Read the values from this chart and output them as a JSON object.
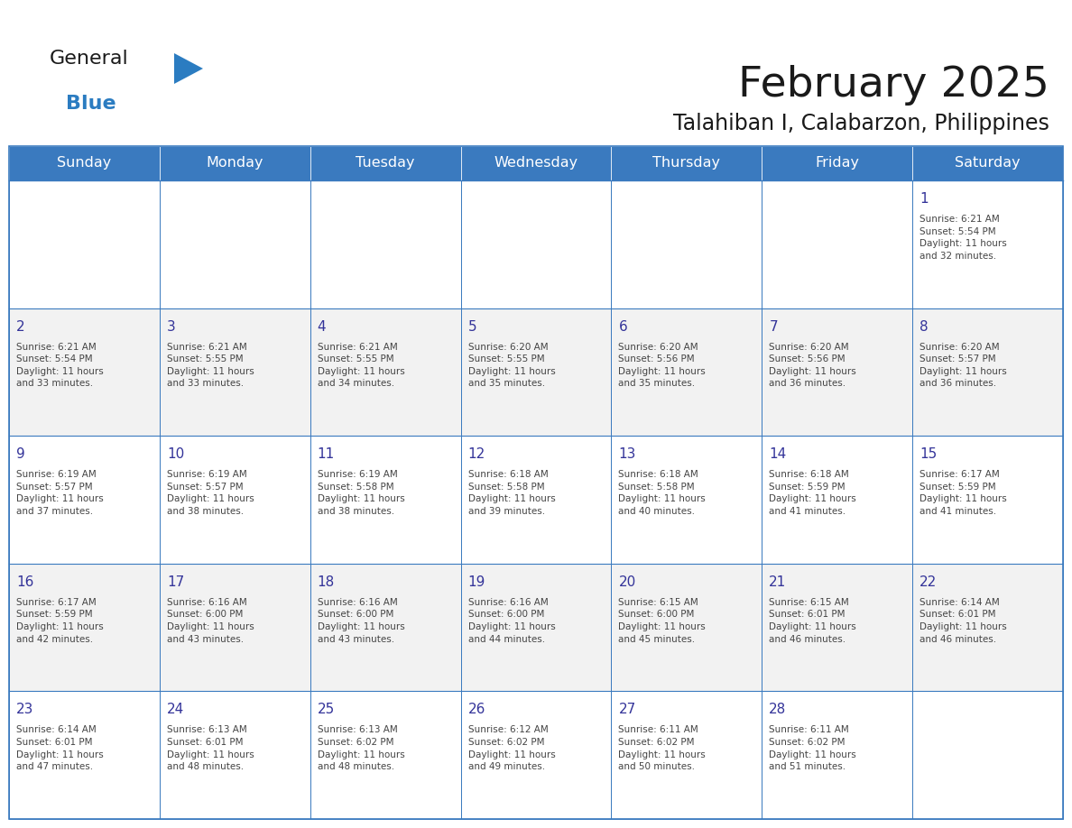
{
  "title": "February 2025",
  "subtitle": "Talahiban I, Calabarzon, Philippines",
  "days_of_week": [
    "Sunday",
    "Monday",
    "Tuesday",
    "Wednesday",
    "Thursday",
    "Friday",
    "Saturday"
  ],
  "header_bg": "#3a7abf",
  "header_fg": "#ffffff",
  "cell_bg": "#ffffff",
  "cell_bg_alt": "#f2f2f2",
  "border_color": "#3a7abf",
  "text_color": "#444444",
  "day_num_color": "#333399",
  "logo_general_color": "#1a1a1a",
  "logo_blue_color": "#2b7cc1",
  "calendar_data": [
    [
      {
        "day": null,
        "info": ""
      },
      {
        "day": null,
        "info": ""
      },
      {
        "day": null,
        "info": ""
      },
      {
        "day": null,
        "info": ""
      },
      {
        "day": null,
        "info": ""
      },
      {
        "day": null,
        "info": ""
      },
      {
        "day": 1,
        "info": "Sunrise: 6:21 AM\nSunset: 5:54 PM\nDaylight: 11 hours\nand 32 minutes."
      }
    ],
    [
      {
        "day": 2,
        "info": "Sunrise: 6:21 AM\nSunset: 5:54 PM\nDaylight: 11 hours\nand 33 minutes."
      },
      {
        "day": 3,
        "info": "Sunrise: 6:21 AM\nSunset: 5:55 PM\nDaylight: 11 hours\nand 33 minutes."
      },
      {
        "day": 4,
        "info": "Sunrise: 6:21 AM\nSunset: 5:55 PM\nDaylight: 11 hours\nand 34 minutes."
      },
      {
        "day": 5,
        "info": "Sunrise: 6:20 AM\nSunset: 5:55 PM\nDaylight: 11 hours\nand 35 minutes."
      },
      {
        "day": 6,
        "info": "Sunrise: 6:20 AM\nSunset: 5:56 PM\nDaylight: 11 hours\nand 35 minutes."
      },
      {
        "day": 7,
        "info": "Sunrise: 6:20 AM\nSunset: 5:56 PM\nDaylight: 11 hours\nand 36 minutes."
      },
      {
        "day": 8,
        "info": "Sunrise: 6:20 AM\nSunset: 5:57 PM\nDaylight: 11 hours\nand 36 minutes."
      }
    ],
    [
      {
        "day": 9,
        "info": "Sunrise: 6:19 AM\nSunset: 5:57 PM\nDaylight: 11 hours\nand 37 minutes."
      },
      {
        "day": 10,
        "info": "Sunrise: 6:19 AM\nSunset: 5:57 PM\nDaylight: 11 hours\nand 38 minutes."
      },
      {
        "day": 11,
        "info": "Sunrise: 6:19 AM\nSunset: 5:58 PM\nDaylight: 11 hours\nand 38 minutes."
      },
      {
        "day": 12,
        "info": "Sunrise: 6:18 AM\nSunset: 5:58 PM\nDaylight: 11 hours\nand 39 minutes."
      },
      {
        "day": 13,
        "info": "Sunrise: 6:18 AM\nSunset: 5:58 PM\nDaylight: 11 hours\nand 40 minutes."
      },
      {
        "day": 14,
        "info": "Sunrise: 6:18 AM\nSunset: 5:59 PM\nDaylight: 11 hours\nand 41 minutes."
      },
      {
        "day": 15,
        "info": "Sunrise: 6:17 AM\nSunset: 5:59 PM\nDaylight: 11 hours\nand 41 minutes."
      }
    ],
    [
      {
        "day": 16,
        "info": "Sunrise: 6:17 AM\nSunset: 5:59 PM\nDaylight: 11 hours\nand 42 minutes."
      },
      {
        "day": 17,
        "info": "Sunrise: 6:16 AM\nSunset: 6:00 PM\nDaylight: 11 hours\nand 43 minutes."
      },
      {
        "day": 18,
        "info": "Sunrise: 6:16 AM\nSunset: 6:00 PM\nDaylight: 11 hours\nand 43 minutes."
      },
      {
        "day": 19,
        "info": "Sunrise: 6:16 AM\nSunset: 6:00 PM\nDaylight: 11 hours\nand 44 minutes."
      },
      {
        "day": 20,
        "info": "Sunrise: 6:15 AM\nSunset: 6:00 PM\nDaylight: 11 hours\nand 45 minutes."
      },
      {
        "day": 21,
        "info": "Sunrise: 6:15 AM\nSunset: 6:01 PM\nDaylight: 11 hours\nand 46 minutes."
      },
      {
        "day": 22,
        "info": "Sunrise: 6:14 AM\nSunset: 6:01 PM\nDaylight: 11 hours\nand 46 minutes."
      }
    ],
    [
      {
        "day": 23,
        "info": "Sunrise: 6:14 AM\nSunset: 6:01 PM\nDaylight: 11 hours\nand 47 minutes."
      },
      {
        "day": 24,
        "info": "Sunrise: 6:13 AM\nSunset: 6:01 PM\nDaylight: 11 hours\nand 48 minutes."
      },
      {
        "day": 25,
        "info": "Sunrise: 6:13 AM\nSunset: 6:02 PM\nDaylight: 11 hours\nand 48 minutes."
      },
      {
        "day": 26,
        "info": "Sunrise: 6:12 AM\nSunset: 6:02 PM\nDaylight: 11 hours\nand 49 minutes."
      },
      {
        "day": 27,
        "info": "Sunrise: 6:11 AM\nSunset: 6:02 PM\nDaylight: 11 hours\nand 50 minutes."
      },
      {
        "day": 28,
        "info": "Sunrise: 6:11 AM\nSunset: 6:02 PM\nDaylight: 11 hours\nand 51 minutes."
      },
      {
        "day": null,
        "info": ""
      }
    ]
  ]
}
